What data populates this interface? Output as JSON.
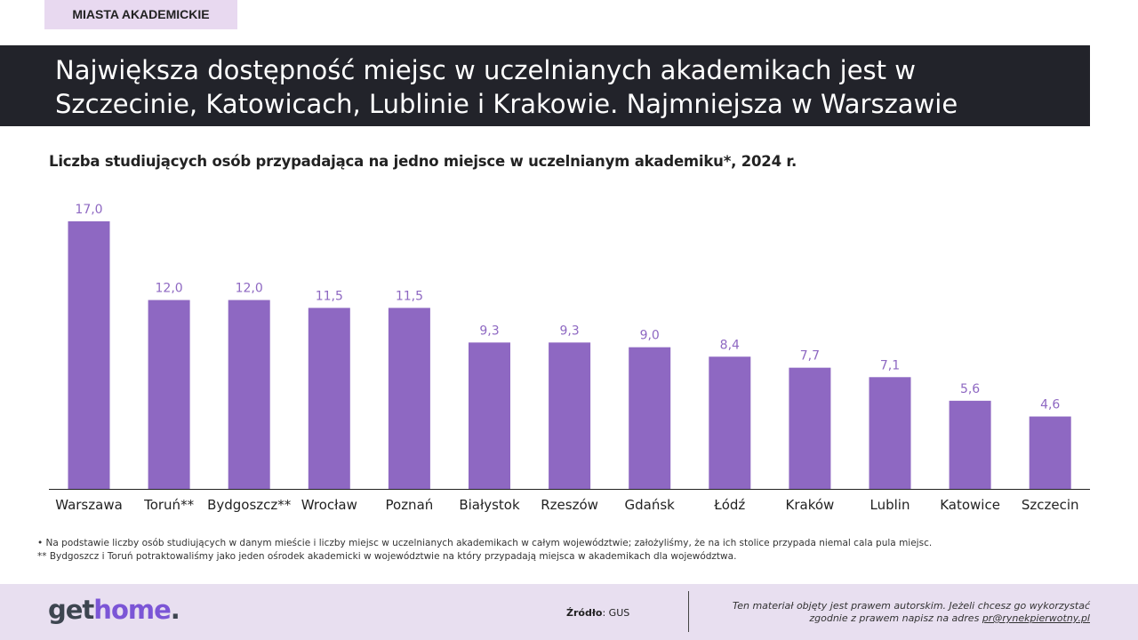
{
  "header": {
    "tag": "MIASTA AKADEMICKIE",
    "headline": "Największa dostępność miejsc w uczelnianych akademikach jest w\nSzczecinie, Katowicach, Lublinie i Krakowie. Najmniejsza w Warszawie"
  },
  "chart_data": {
    "type": "bar",
    "title": "Liczba studiujących osób przypadająca na jedno miejsce w uczelnianym akademiku*, 2024 r.",
    "categories": [
      "Warszawa",
      "Toruń**",
      "Bydgoszcz**",
      "Wrocław",
      "Poznań",
      "Białystok",
      "Rzeszów",
      "Gdańsk",
      "Łódź",
      "Kraków",
      "Lublin",
      "Katowice",
      "Szczecin"
    ],
    "values": [
      17.0,
      12.0,
      12.0,
      11.5,
      11.5,
      9.3,
      9.3,
      9.0,
      8.4,
      7.7,
      7.1,
      5.6,
      4.6
    ],
    "value_labels": [
      "17,0",
      "12,0",
      "12,0",
      "11,5",
      "11,5",
      "9,3",
      "9,3",
      "9,0",
      "8,4",
      "7,7",
      "7,1",
      "5,6",
      "4,6"
    ],
    "ylim": [
      0,
      17.0
    ],
    "grid": false,
    "legend": "none",
    "colors": {
      "bar": "#8e68c2",
      "label": "#8e68c2",
      "axis": "#222222"
    }
  },
  "notes": [
    "•    Na podstawie liczby osób studiujących w danym mieście i liczby miejsc w uczelnianych akademikach w całym województwie; założyliśmy, że na ich stolice przypada niemal cala pula miejsc.",
    "** Bydgoszcz i Toruń potraktowaliśmy jako jeden ośrodek akademicki w województwie na który przypadają miejsca w akademikach dla województwa."
  ],
  "footer": {
    "logo_part1": "get",
    "logo_part2": "home",
    "logo_part3": ".",
    "source_label": "Źródło",
    "source_value": ": GUS",
    "copyright_line1": "Ten materiał objęty jest prawem autorskim. Jeżeli chcesz go wykorzystać",
    "copyright_line2": "zgodnie z prawem napisz na adres ",
    "copyright_email": "pr@rynekpierwotny.pl"
  }
}
